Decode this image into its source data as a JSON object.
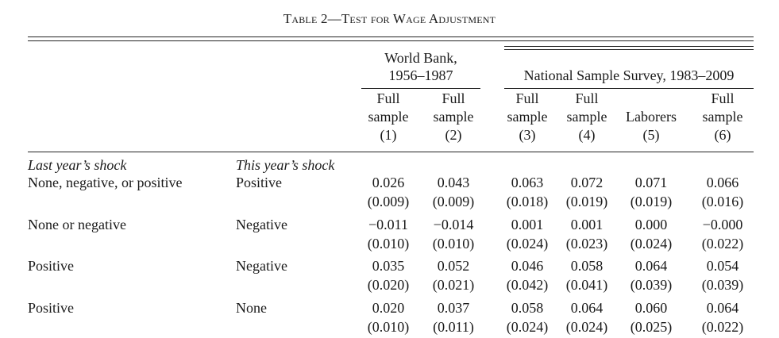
{
  "caption": "Table 2—Test for Wage Adjustment",
  "groups": {
    "world_bank": {
      "line1": "World Bank,",
      "line2": "1956–1987"
    },
    "nss": "National Sample Survey, 1983–2009"
  },
  "columns": [
    {
      "l1": "Full",
      "l2": "sample",
      "l3": "(1)"
    },
    {
      "l1": "Full",
      "l2": "sample",
      "l3": "(2)"
    },
    {
      "l1": "Full",
      "l2": "sample",
      "l3": "(3)"
    },
    {
      "l1": "Full",
      "l2": "sample",
      "l3": "(4)"
    },
    {
      "l1": "",
      "l2": "Laborers",
      "l3": "(5)"
    },
    {
      "l1": "Full",
      "l2": "sample",
      "l3": "(6)"
    }
  ],
  "headers": {
    "last_year": "Last year’s shock",
    "this_year": "This year’s shock"
  },
  "rows": [
    {
      "last": "None, negative, or positive",
      "this": "Positive",
      "coef": [
        "0.026",
        "0.043",
        "0.063",
        "0.072",
        "0.071",
        "0.066"
      ],
      "se": [
        "(0.009)",
        "(0.009)",
        "(0.018)",
        "(0.019)",
        "(0.019)",
        "(0.016)"
      ]
    },
    {
      "last": "None or negative",
      "this": "Negative",
      "coef": [
        "−0.011",
        "−0.014",
        "0.001",
        "0.001",
        "0.000",
        "−0.000"
      ],
      "se": [
        "(0.010)",
        "(0.010)",
        "(0.024)",
        "(0.023)",
        "(0.024)",
        "(0.022)"
      ]
    },
    {
      "last": "Positive",
      "this": "Negative",
      "coef": [
        "0.035",
        "0.052",
        "0.046",
        "0.058",
        "0.064",
        "0.054"
      ],
      "se": [
        "(0.020)",
        "(0.021)",
        "(0.042)",
        "(0.041)",
        "(0.039)",
        "(0.039)"
      ]
    },
    {
      "last": "Positive",
      "this": "None",
      "coef": [
        "0.020",
        "0.037",
        "0.058",
        "0.064",
        "0.060",
        "0.064"
      ],
      "se": [
        "(0.010)",
        "(0.011)",
        "(0.024)",
        "(0.024)",
        "(0.025)",
        "(0.022)"
      ]
    }
  ]
}
